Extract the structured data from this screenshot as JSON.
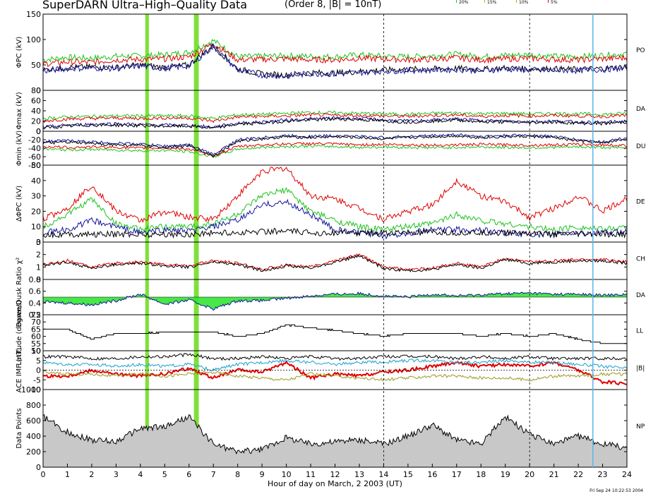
{
  "header": {
    "title": "SuperDARN Ultra–High–Quality Data",
    "subtitle": "(Order 8, |B| = 10nT)",
    "legend": [
      {
        "label": "20%",
        "color": "#1ec21e"
      },
      {
        "label": "15%",
        "color": "#c8b400"
      },
      {
        "label": "10%",
        "color": "#e89a00"
      },
      {
        "label": "5%",
        "color": "#e00000"
      }
    ]
  },
  "footer": {
    "timestamp": "Fri Sep 24 10:22:53 2004"
  },
  "chart_data": {
    "type": "line",
    "xlabel": "Hour of day on March, 2 2003 (UT)",
    "xlim": [
      0,
      24
    ],
    "xticks": [
      "0",
      "1",
      "2",
      "3",
      "4",
      "5",
      "6",
      "7",
      "8",
      "9",
      "10",
      "11",
      "12",
      "13",
      "14",
      "15",
      "16",
      "17",
      "18",
      "19",
      "20",
      "21",
      "22",
      "23",
      "24"
    ],
    "dashed_hours": [
      14,
      20
    ],
    "highlight_bands": [
      {
        "from": 4.2,
        "to": 4.35,
        "color": "#7fe03a"
      },
      {
        "from": 6.2,
        "to": 6.4,
        "color": "#7fe03a"
      }
    ],
    "marker_line": {
      "hour": 22.6,
      "color": "#5fb4e8"
    },
    "panels": [
      {
        "ylabel": "ΦPC (kV)",
        "ylim": [
          0,
          150
        ],
        "yticks": [
          "0",
          "50",
          "100",
          "150"
        ],
        "right_label": "PO",
        "series": [
          {
            "color": "#1ec21e",
            "values": [
              60,
              65,
              63,
              67,
              68,
              70,
              75,
              98,
              66,
              67,
              68,
              67,
              66,
              70,
              67,
              66,
              68,
              71,
              66,
              69,
              70,
              67,
              66,
              69,
              72
            ]
          },
          {
            "color": "#e00000",
            "values": [
              52,
              56,
              55,
              60,
              61,
              62,
              66,
              92,
              60,
              61,
              62,
              60,
              60,
              63,
              62,
              60,
              61,
              64,
              60,
              62,
              63,
              61,
              60,
              62,
              64
            ]
          },
          {
            "color": "#000000",
            "values": [
              40,
              45,
              46,
              45,
              50,
              45,
              50,
              88,
              42,
              32,
              30,
              35,
              34,
              37,
              40,
              41,
              42,
              43,
              41,
              44,
              42,
              42,
              41,
              43,
              46
            ]
          },
          {
            "color": "#1515a0",
            "values": [
              38,
              43,
              44,
              43,
              48,
              43,
              48,
              86,
              40,
              30,
              28,
              33,
              32,
              35,
              38,
              39,
              40,
              41,
              39,
              42,
              40,
              40,
              39,
              41,
              44
            ]
          }
        ]
      },
      {
        "ylabel": "Φmax (kV)",
        "ylim": [
          0,
          80
        ],
        "yticks": [
          "0",
          "20",
          "40",
          "60",
          "80"
        ],
        "right_label": "DA",
        "series": [
          {
            "color": "#1ec21e",
            "values": [
              25,
              28,
              29,
              30,
              30,
              30,
              30,
              25,
              32,
              33,
              35,
              37,
              36,
              35,
              34,
              33,
              35,
              36,
              34,
              35,
              34,
              35,
              34,
              33,
              35
            ]
          },
          {
            "color": "#e00000",
            "values": [
              20,
              24,
              25,
              26,
              25,
              26,
              26,
              20,
              28,
              29,
              30,
              32,
              31,
              31,
              30,
              29,
              31,
              32,
              29,
              31,
              30,
              31,
              30,
              29,
              31
            ]
          },
          {
            "color": "#1515a0",
            "values": [
              8,
              12,
              14,
              15,
              13,
              12,
              12,
              8,
              16,
              18,
              22,
              24,
              26,
              25,
              22,
              20,
              22,
              24,
              21,
              20,
              19,
              20,
              18,
              17,
              20
            ]
          },
          {
            "color": "#000000",
            "values": [
              6,
              10,
              12,
              12,
              11,
              10,
              10,
              6,
              14,
              16,
              20,
              22,
              24,
              23,
              20,
              18,
              20,
              22,
              19,
              18,
              17,
              18,
              16,
              15,
              18
            ]
          }
        ]
      },
      {
        "ylabel": "Φmin (kV)",
        "ylim": [
          -80,
          0
        ],
        "yticks": [
          "-80",
          "-60",
          "-40",
          "-20",
          "0"
        ],
        "right_label": "DU",
        "series": [
          {
            "color": "#1ec21e",
            "values": [
              -42,
              -44,
              -43,
              -44,
              -46,
              -45,
              -48,
              -60,
              -42,
              -38,
              -36,
              -35,
              -36,
              -38,
              -37,
              -38,
              -39,
              -38,
              -37,
              -38,
              -39,
              -38,
              -37,
              -38,
              -40
            ]
          },
          {
            "color": "#e00000",
            "values": [
              -36,
              -38,
              -37,
              -38,
              -40,
              -39,
              -42,
              -58,
              -36,
              -32,
              -30,
              -29,
              -30,
              -32,
              -31,
              -32,
              -33,
              -32,
              -31,
              -32,
              -33,
              -32,
              -31,
              -32,
              -34
            ]
          },
          {
            "color": "#1515a0",
            "values": [
              -24,
              -22,
              -25,
              -28,
              -30,
              -35,
              -32,
              -55,
              -20,
              -15,
              -10,
              -12,
              -10,
              -12,
              -15,
              -12,
              -10,
              -8,
              -12,
              -10,
              -9,
              -12,
              -20,
              -25,
              -15
            ]
          },
          {
            "color": "#000000",
            "values": [
              -28,
              -26,
              -29,
              -32,
              -34,
              -38,
              -35,
              -58,
              -24,
              -18,
              -13,
              -15,
              -13,
              -15,
              -18,
              -15,
              -13,
              -11,
              -15,
              -13,
              -12,
              -15,
              -23,
              -28,
              -18
            ]
          }
        ]
      },
      {
        "ylabel": "ΔΦPC (kV)",
        "ylim": [
          0,
          50
        ],
        "yticks": [
          "0",
          "10",
          "20",
          "30",
          "40",
          "50"
        ],
        "right_label": "DE",
        "series": [
          {
            "color": "#e00000",
            "values": [
              15,
              22,
              37,
              20,
              14,
              20,
              16,
              15,
              30,
              46,
              48,
              30,
              28,
              22,
              15,
              20,
              24,
              40,
              30,
              26,
              16,
              22,
              30,
              20,
              28
            ]
          },
          {
            "color": "#1ec21e",
            "values": [
              10,
              18,
              28,
              12,
              8,
              10,
              10,
              12,
              18,
              30,
              34,
              20,
              14,
              10,
              8,
              10,
              12,
              18,
              14,
              12,
              10,
              8,
              10,
              8,
              10
            ]
          },
          {
            "color": "#1515a0",
            "values": [
              6,
              8,
              14,
              10,
              6,
              8,
              7,
              10,
              14,
              24,
              26,
              18,
              8,
              6,
              4,
              6,
              8,
              8,
              8,
              6,
              5,
              5,
              6,
              6,
              7
            ]
          },
          {
            "color": "#000000",
            "values": [
              5,
              5,
              5,
              5,
              5,
              5,
              5,
              6,
              6,
              7,
              7,
              6,
              6,
              6,
              6,
              6,
              6,
              6,
              6,
              6,
              6,
              5,
              5,
              5,
              5
            ]
          }
        ]
      },
      {
        "ylabel": "χ²",
        "ylim": [
          0,
          3
        ],
        "yticks": [
          "0",
          "1",
          "2",
          "3"
        ],
        "right_label": "CH",
        "series": [
          {
            "color": "#e00000",
            "values": [
              1.2,
              1.5,
              1.0,
              1.3,
              1.4,
              1.2,
              1.1,
              1.5,
              1.3,
              0.8,
              1.2,
              1.0,
              1.5,
              2.0,
              1.0,
              0.8,
              0.9,
              1.3,
              1.0,
              1.7,
              1.4,
              1.5,
              1.6,
              1.6,
              1.4
            ]
          },
          {
            "color": "#000000",
            "values": [
              1.1,
              1.4,
              0.9,
              1.2,
              1.3,
              1.1,
              1.0,
              1.4,
              1.2,
              0.7,
              1.1,
              0.9,
              1.4,
              1.9,
              0.9,
              0.7,
              0.8,
              1.2,
              0.9,
              1.6,
              1.3,
              1.4,
              1.5,
              1.5,
              1.3
            ]
          }
        ]
      },
      {
        "ylabel": "Dawn/Dusk Ratio",
        "ylim": [
          0.2,
          0.8
        ],
        "yticks": [
          "0.2",
          "0.4",
          "0.6",
          "0.8"
        ],
        "baseline": 0.5,
        "right_label": "DA",
        "series": [
          {
            "color": "#1515a0",
            "values": [
              0.42,
              0.4,
              0.37,
              0.44,
              0.55,
              0.38,
              0.45,
              0.3,
              0.44,
              0.44,
              0.48,
              0.52,
              0.55,
              0.56,
              0.52,
              0.5,
              0.55,
              0.52,
              0.54,
              0.56,
              0.57,
              0.55,
              0.55,
              0.53,
              0.55
            ]
          }
        ]
      },
      {
        "ylabel": "Latitude (degrees)",
        "ylim": [
          50,
          75
        ],
        "yticks": [
          "50",
          "55",
          "60",
          "65",
          "70",
          "75"
        ],
        "right_label": "LL",
        "series": [
          {
            "color": "#000000",
            "values": [
              65,
              65,
              58,
              62,
              62,
              63,
              63,
              63,
              60,
              62,
              68,
              66,
              64,
              62,
              60,
              62,
              62,
              62,
              60,
              62,
              60,
              62,
              58,
              55,
              55
            ]
          }
        ]
      },
      {
        "ylabel": "ACE IMF (nT)",
        "ylim": [
          -10,
          10
        ],
        "yticks": [
          "-10",
          "-5",
          "0",
          "5",
          "10"
        ],
        "right_label": "|B|",
        "series": [
          {
            "color": "#000000",
            "values": [
              7,
              7,
              6,
              6,
              7,
              7,
              8,
              6,
              6,
              7,
              6,
              7,
              6,
              6,
              7,
              7,
              7,
              6,
              7,
              6,
              7,
              6,
              6,
              6,
              6
            ]
          },
          {
            "color": "#e00000",
            "values": [
              -3,
              -3,
              0,
              -2,
              -3,
              -2,
              1,
              -4,
              0,
              -1,
              4,
              -4,
              -2,
              -3,
              -1,
              0,
              2,
              4,
              2,
              3,
              2,
              4,
              0,
              -6,
              -7
            ]
          },
          {
            "color": "#1aa0d0",
            "values": [
              4,
              3,
              3,
              2,
              3,
              2,
              3,
              0,
              3,
              4,
              5,
              4,
              3,
              4,
              4,
              5,
              5,
              4,
              4,
              5,
              4,
              4,
              3,
              2,
              1
            ]
          },
          {
            "color": "#9a9a20",
            "values": [
              -1,
              -2,
              -2,
              -3,
              -2,
              -3,
              -2,
              -1,
              -3,
              -4,
              -5,
              -2,
              -3,
              -4,
              -5,
              -4,
              -3,
              -3,
              -4,
              -4,
              -5,
              -3,
              -3,
              -2,
              -2
            ]
          }
        ]
      },
      {
        "ylabel": "Data Points",
        "ylim": [
          0,
          1000
        ],
        "yticks": [
          "0",
          "200",
          "400",
          "600",
          "800",
          "1000"
        ],
        "right_label": "NP",
        "series": [
          {
            "color": "#000000",
            "fill": "#c8c8c8",
            "values": [
              650,
              450,
              350,
              330,
              500,
              520,
              650,
              300,
              200,
              230,
              380,
              300,
              330,
              350,
              300,
              400,
              550,
              350,
              300,
              650,
              420,
              300,
              400,
              300,
              250
            ]
          }
        ]
      }
    ]
  }
}
